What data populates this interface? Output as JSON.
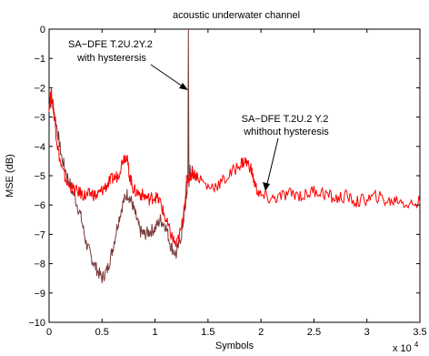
{
  "chart_data": {
    "type": "line",
    "title": "acoustic underwater channel",
    "xlabel": "Symbols",
    "ylabel": "MSE (dB)",
    "x_multiplier_label": "x 10",
    "x_multiplier_exponent": "4",
    "xlim": [
      0,
      3.5
    ],
    "ylim": [
      -10,
      0
    ],
    "xticks": [
      0,
      0.5,
      1,
      1.5,
      2,
      2.5,
      3,
      3.5
    ],
    "xtick_labels": [
      "0",
      "0.5",
      "1",
      "1.5",
      "2",
      "2.5",
      "3",
      "3.5"
    ],
    "yticks": [
      0,
      -1,
      -2,
      -3,
      -4,
      -5,
      -6,
      -7,
      -8,
      -9,
      -10
    ],
    "ytick_labels": [
      "0",
      "−1",
      "−2",
      "−3",
      "−4",
      "−5",
      "−6",
      "−7",
      "−8",
      "−9",
      "−10"
    ],
    "grid": false,
    "series": [
      {
        "color": "#7a3a3a",
        "x": [
          0,
          0.03,
          0.08,
          0.12,
          0.18,
          0.24,
          0.3,
          0.35,
          0.4,
          0.45,
          0.5,
          0.55,
          0.6,
          0.65,
          0.7,
          0.74,
          0.78,
          0.82,
          0.86,
          0.9,
          0.95,
          1.0,
          1.05,
          1.1,
          1.15,
          1.2,
          1.25,
          1.28,
          1.3,
          1.31,
          1.315,
          1.32,
          1.33,
          1.36,
          1.4
        ],
        "y": [
          -2.6,
          -2.4,
          -3.5,
          -4.4,
          -5.1,
          -5.7,
          -6.4,
          -7.3,
          -7.8,
          -8.2,
          -8.5,
          -8.2,
          -7.5,
          -6.6,
          -5.9,
          -5.6,
          -5.9,
          -6.4,
          -6.9,
          -7.0,
          -6.9,
          -6.8,
          -6.5,
          -6.7,
          -7.4,
          -7.7,
          -7.0,
          -6.2,
          -5.6,
          -5.0,
          0.0,
          -5.2,
          -4.8,
          -4.9,
          -5.0
        ]
      },
      {
        "color": "#ff0000",
        "x": [
          0,
          0.02,
          0.05,
          0.08,
          0.12,
          0.18,
          0.24,
          0.3,
          0.35,
          0.4,
          0.45,
          0.5,
          0.55,
          0.6,
          0.65,
          0.7,
          0.73,
          0.76,
          0.8,
          0.85,
          0.9,
          0.95,
          1.0,
          1.05,
          1.1,
          1.15,
          1.2,
          1.25,
          1.3,
          1.35,
          1.4,
          1.5,
          1.6,
          1.7,
          1.8,
          1.85,
          1.9,
          1.95,
          2.0,
          2.1,
          2.2,
          2.3,
          2.4,
          2.5,
          2.6,
          2.7,
          2.8,
          2.9,
          3.0,
          3.1,
          3.2,
          3.3,
          3.4,
          3.5
        ],
        "y": [
          -2.6,
          -2.2,
          -3.0,
          -4.0,
          -4.8,
          -5.3,
          -5.5,
          -5.6,
          -5.7,
          -5.6,
          -5.7,
          -5.5,
          -5.3,
          -5.1,
          -5.0,
          -4.4,
          -4.3,
          -5.0,
          -5.5,
          -5.6,
          -5.7,
          -5.8,
          -5.7,
          -5.9,
          -6.5,
          -7.0,
          -7.4,
          -6.8,
          -5.2,
          -4.9,
          -5.0,
          -5.4,
          -5.3,
          -5.0,
          -4.6,
          -4.5,
          -4.7,
          -5.4,
          -5.7,
          -5.8,
          -5.7,
          -5.6,
          -5.7,
          -5.5,
          -5.6,
          -5.8,
          -5.7,
          -5.9,
          -5.8,
          -5.7,
          -5.9,
          -5.8,
          -6.0,
          -5.9
        ]
      }
    ],
    "annotations": [
      {
        "lines": [
          "SA−DFE T.2U.2Y.2",
          "with  hysterersis"
        ],
        "points_to": [
          1.31,
          -2.0
        ]
      },
      {
        "lines": [
          "SA−DFE T.2U.2 Y.2",
          "whithout hysteresis"
        ],
        "points_to": [
          2.02,
          -5.6
        ]
      }
    ]
  }
}
